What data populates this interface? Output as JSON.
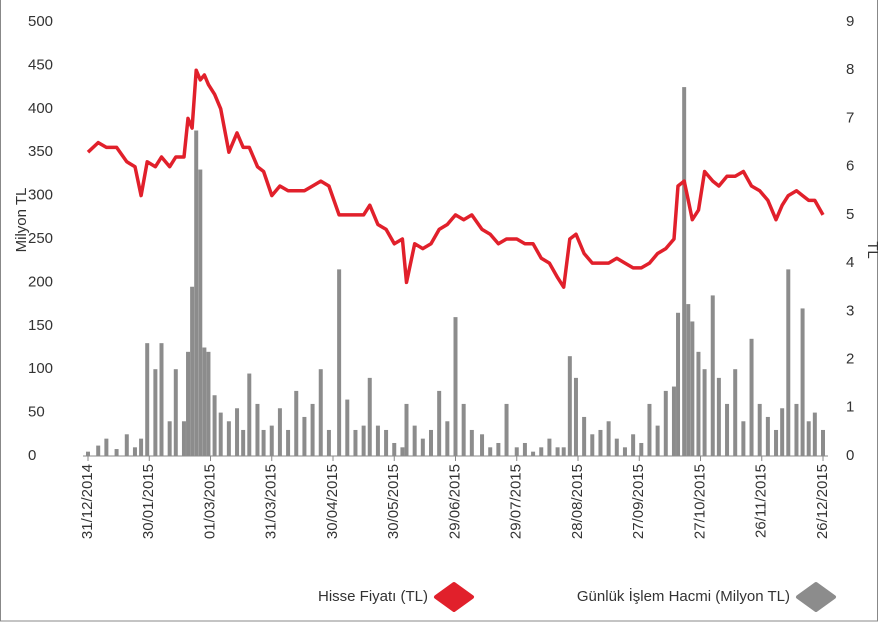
{
  "chart_data": {
    "type": "bar_line",
    "y_label": "Milyon TL",
    "y2_label": "TL",
    "ylim": [
      0,
      500
    ],
    "yticks": [
      0,
      50,
      100,
      150,
      200,
      250,
      300,
      350,
      400,
      450,
      500
    ],
    "y2lim": [
      0,
      9
    ],
    "y2ticks": [
      0,
      1,
      2,
      3,
      4,
      5,
      6,
      7,
      8,
      9
    ],
    "xticks": [
      "31/12/2014",
      "30/01/2015",
      "01/03/2015",
      "31/03/2015",
      "30/04/2015",
      "30/05/2015",
      "29/06/2015",
      "29/07/2015",
      "28/08/2015",
      "27/09/2015",
      "27/10/2015",
      "26/11/2015",
      "26/12/2015"
    ],
    "x": [
      "31/12/2014",
      "05/01/2015",
      "09/01/2015",
      "14/01/2015",
      "19/01/2015",
      "23/01/2015",
      "26/01/2015",
      "29/01/2015",
      "02/02/2015",
      "05/02/2015",
      "09/02/2015",
      "12/02/2015",
      "16/02/2015",
      "18/02/2015",
      "20/02/2015",
      "22/02/2015",
      "24/02/2015",
      "26/02/2015",
      "28/02/2015",
      "03/03/2015",
      "06/03/2015",
      "10/03/2015",
      "14/03/2015",
      "17/03/2015",
      "20/03/2015",
      "24/03/2015",
      "27/03/2015",
      "31/03/2015",
      "04/04/2015",
      "08/04/2015",
      "12/04/2015",
      "16/04/2015",
      "20/04/2015",
      "24/04/2015",
      "28/04/2015",
      "03/05/2015",
      "07/05/2015",
      "11/05/2015",
      "15/05/2015",
      "18/05/2015",
      "22/05/2015",
      "26/05/2015",
      "30/05/2015",
      "03/06/2015",
      "05/06/2015",
      "09/06/2015",
      "13/06/2015",
      "17/06/2015",
      "21/06/2015",
      "25/06/2015",
      "29/06/2015",
      "03/07/2015",
      "07/07/2015",
      "12/07/2015",
      "16/07/2015",
      "20/07/2015",
      "24/07/2015",
      "29/07/2015",
      "02/08/2015",
      "06/08/2015",
      "10/08/2015",
      "14/08/2015",
      "18/08/2015",
      "21/08/2015",
      "24/08/2015",
      "27/08/2015",
      "31/08/2015",
      "04/09/2015",
      "08/09/2015",
      "12/09/2015",
      "16/09/2015",
      "20/09/2015",
      "24/09/2015",
      "28/09/2015",
      "02/10/2015",
      "06/10/2015",
      "10/10/2015",
      "14/10/2015",
      "16/10/2015",
      "19/10/2015",
      "21/10/2015",
      "23/10/2015",
      "26/10/2015",
      "29/10/2015",
      "02/11/2015",
      "05/11/2015",
      "09/11/2015",
      "13/11/2015",
      "17/11/2015",
      "21/11/2015",
      "25/11/2015",
      "29/11/2015",
      "03/12/2015",
      "06/12/2015",
      "09/12/2015",
      "13/12/2015",
      "16/12/2015",
      "19/12/2015",
      "22/12/2015",
      "26/12/2015"
    ],
    "series": [
      {
        "name": "Hisse Fiyatı (TL)",
        "color": "#e1202b",
        "kind": "line",
        "axis": "y2",
        "values": [
          6.3,
          6.5,
          6.4,
          6.4,
          6.1,
          6.0,
          5.4,
          6.1,
          6.0,
          6.2,
          6.0,
          6.2,
          6.2,
          7.0,
          6.8,
          8.0,
          7.8,
          7.9,
          7.7,
          7.5,
          7.2,
          6.3,
          6.7,
          6.4,
          6.4,
          6.0,
          5.9,
          5.4,
          5.6,
          5.5,
          5.5,
          5.5,
          5.6,
          5.7,
          5.6,
          5.0,
          5.0,
          5.0,
          5.0,
          5.2,
          4.8,
          4.7,
          4.4,
          4.5,
          3.6,
          4.4,
          4.3,
          4.4,
          4.7,
          4.8,
          5.0,
          4.9,
          5.0,
          4.7,
          4.6,
          4.4,
          4.5,
          4.5,
          4.4,
          4.4,
          4.1,
          4.0,
          3.7,
          3.5,
          4.5,
          4.6,
          4.2,
          4.0,
          4.0,
          4.0,
          4.1,
          4.0,
          3.9,
          3.9,
          4.0,
          4.2,
          4.3,
          4.5,
          5.6,
          5.7,
          5.3,
          4.9,
          5.1,
          5.9,
          5.7,
          5.6,
          5.8,
          5.8,
          5.9,
          5.6,
          5.5,
          5.3,
          4.9,
          5.2,
          5.4,
          5.5,
          5.4,
          5.3,
          5.3,
          5.0
        ]
      },
      {
        "name": "Günlük İşlem Hacmi (Milyon TL)",
        "color": "#8c8c8c",
        "kind": "bar",
        "values": [
          5,
          12,
          20,
          8,
          25,
          10,
          20,
          130,
          100,
          130,
          40,
          100,
          40,
          120,
          195,
          375,
          330,
          125,
          120,
          70,
          50,
          40,
          55,
          30,
          95,
          60,
          30,
          35,
          55,
          30,
          75,
          45,
          60,
          100,
          30,
          215,
          65,
          30,
          35,
          90,
          35,
          30,
          15,
          10,
          60,
          35,
          20,
          30,
          75,
          40,
          160,
          60,
          30,
          25,
          10,
          15,
          60,
          10,
          15,
          5,
          10,
          20,
          10,
          10,
          115,
          90,
          45,
          25,
          30,
          40,
          20,
          10,
          25,
          15,
          60,
          35,
          75,
          80,
          165,
          425,
          175,
          155,
          120,
          100,
          185,
          90,
          60,
          100,
          40,
          135,
          60,
          45,
          30,
          55,
          215,
          60,
          170,
          40,
          50,
          30
        ]
      }
    ]
  }
}
